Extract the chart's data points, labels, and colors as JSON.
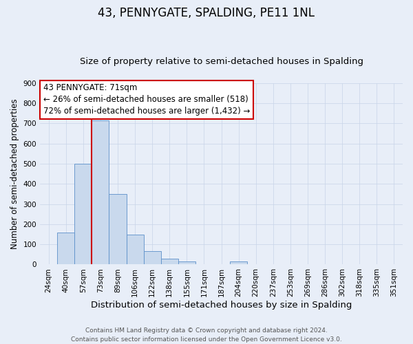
{
  "title": "43, PENNYGATE, SPALDING, PE11 1NL",
  "subtitle": "Size of property relative to semi-detached houses in Spalding",
  "xlabel": "Distribution of semi-detached houses by size in Spalding",
  "ylabel": "Number of semi-detached properties",
  "categories": [
    "24sqm",
    "40sqm",
    "57sqm",
    "73sqm",
    "89sqm",
    "106sqm",
    "122sqm",
    "138sqm",
    "155sqm",
    "171sqm",
    "187sqm",
    "204sqm",
    "220sqm",
    "237sqm",
    "253sqm",
    "269sqm",
    "286sqm",
    "302sqm",
    "318sqm",
    "335sqm",
    "351sqm"
  ],
  "values": [
    0,
    160,
    500,
    715,
    350,
    150,
    65,
    28,
    15,
    0,
    0,
    15,
    0,
    0,
    0,
    0,
    0,
    0,
    0,
    0,
    0
  ],
  "bar_color": "#c9d9ed",
  "bar_edge_color": "#5b8fc9",
  "ylim": [
    0,
    900
  ],
  "yticks": [
    0,
    100,
    200,
    300,
    400,
    500,
    600,
    700,
    800,
    900
  ],
  "annotation_line1": "43 PENNYGATE: 71sqm",
  "annotation_line2": "← 26% of semi-detached houses are smaller (518)",
  "annotation_line3": "72% of semi-detached houses are larger (1,432) →",
  "annotation_box_color": "#ffffff",
  "annotation_box_edge_color": "#cc0000",
  "marker_line_color": "#cc0000",
  "grid_color": "#c8d4e8",
  "background_color": "#e8eef8",
  "footer_line1": "Contains HM Land Registry data © Crown copyright and database right 2024.",
  "footer_line2": "Contains public sector information licensed under the Open Government Licence v3.0.",
  "title_fontsize": 12,
  "subtitle_fontsize": 9.5,
  "xlabel_fontsize": 9.5,
  "ylabel_fontsize": 8.5,
  "tick_fontsize": 7.5,
  "annotation_fontsize": 8.5,
  "footer_fontsize": 6.5
}
